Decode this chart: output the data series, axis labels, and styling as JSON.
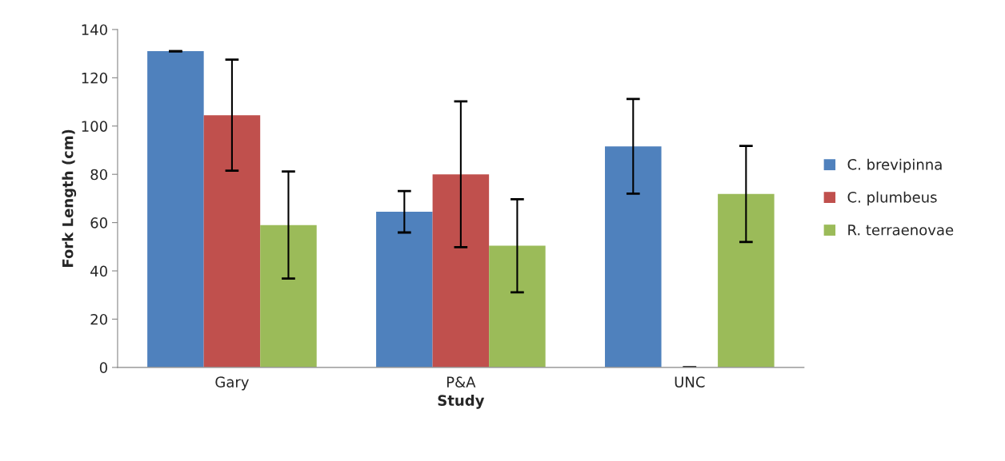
{
  "chart_data": {
    "type": "bar",
    "xlabel": "Study",
    "ylabel": "Fork Length (cm)",
    "categories": [
      "Gary",
      "P&A",
      "UNC"
    ],
    "series": [
      {
        "name": "C. brevipinna",
        "color": "#4f81bd",
        "values": [
          131,
          64.5,
          91.6
        ],
        "errors": [
          0,
          8.6,
          19.6
        ]
      },
      {
        "name": "C. plumbeus",
        "color": "#c0504d",
        "values": [
          104.5,
          80,
          0
        ],
        "errors": [
          23,
          30.2,
          0
        ]
      },
      {
        "name": "R. terraenovae",
        "color": "#9bbb59",
        "values": [
          59,
          50.4,
          71.9
        ],
        "errors": [
          22.2,
          19.3,
          19.9
        ]
      }
    ],
    "ylim": [
      0,
      140
    ],
    "yticks": [
      0,
      20,
      40,
      60,
      80,
      100,
      120,
      140
    ],
    "grid": false,
    "legend": "right"
  }
}
